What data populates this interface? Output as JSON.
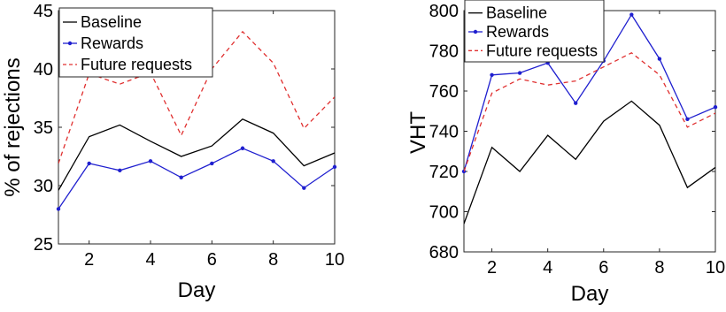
{
  "chart_data": [
    {
      "type": "line",
      "xlabel": "Day",
      "ylabel": "% of rejections",
      "xlim": [
        1,
        10
      ],
      "ylim": [
        25,
        45
      ],
      "x_ticks": [
        2,
        4,
        6,
        8,
        10
      ],
      "y_ticks": [
        25,
        30,
        35,
        40,
        45
      ],
      "x": [
        1,
        2,
        3,
        4,
        5,
        6,
        7,
        8,
        9,
        10
      ],
      "legend_position": "top-left",
      "grid": false,
      "series": [
        {
          "name": "Baseline",
          "color": "#000000",
          "style": "solid",
          "marker": "none",
          "values": [
            29.6,
            34.2,
            35.2,
            33.8,
            32.5,
            33.4,
            35.7,
            34.5,
            31.7,
            32.8
          ]
        },
        {
          "name": "Rewards",
          "color": "#1f1fcf",
          "style": "solid",
          "marker": "dot",
          "values": [
            28.0,
            31.9,
            31.3,
            32.1,
            30.7,
            31.9,
            33.2,
            32.1,
            29.8,
            31.6
          ]
        },
        {
          "name": "Future requests",
          "color": "#e03030",
          "style": "dashed",
          "marker": "none",
          "values": [
            31.9,
            39.6,
            38.7,
            39.7,
            34.3,
            40.0,
            43.2,
            40.5,
            34.9,
            37.6
          ]
        }
      ]
    },
    {
      "type": "line",
      "xlabel": "Day",
      "ylabel": "VHT",
      "xlim": [
        1,
        10
      ],
      "ylim": [
        680,
        800
      ],
      "x_ticks": [
        2,
        4,
        6,
        8,
        10
      ],
      "y_ticks": [
        680,
        700,
        720,
        740,
        760,
        780,
        800
      ],
      "x": [
        1,
        2,
        3,
        4,
        5,
        6,
        7,
        8,
        9,
        10
      ],
      "legend_position": "top-left",
      "grid": false,
      "series": [
        {
          "name": "Baseline",
          "color": "#000000",
          "style": "solid",
          "marker": "none",
          "values": [
            694,
            732,
            720,
            738,
            726,
            745,
            755,
            743,
            712,
            722
          ]
        },
        {
          "name": "Rewards",
          "color": "#1f1fcf",
          "style": "solid",
          "marker": "dot",
          "values": [
            720,
            768,
            769,
            774,
            754,
            775,
            798,
            776,
            746,
            752
          ]
        },
        {
          "name": "Future requests",
          "color": "#e03030",
          "style": "dashed",
          "marker": "none",
          "values": [
            720,
            759,
            766,
            763,
            765,
            772,
            779,
            768,
            742,
            749
          ]
        }
      ]
    }
  ]
}
